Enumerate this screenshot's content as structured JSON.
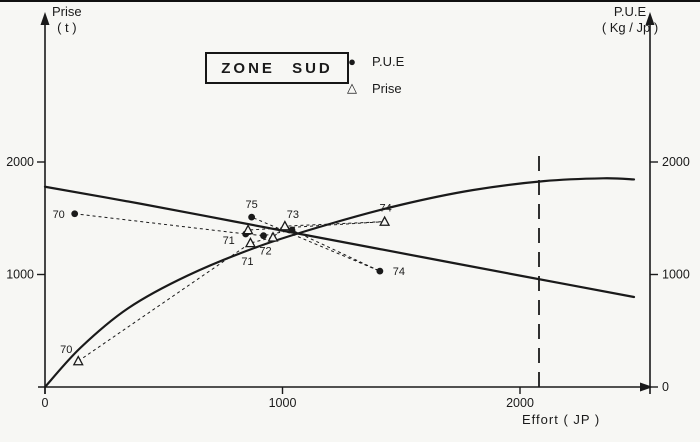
{
  "title_box": "ZONE SUD",
  "legend": {
    "items": [
      {
        "symbol": "●",
        "label": "P.U.E"
      },
      {
        "symbol": "△",
        "label": "Prise"
      }
    ]
  },
  "axis_labels": {
    "left_1": "Prise",
    "left_2": "( t )",
    "right_1": "P.U.E",
    "right_2": "( Kg / Jp )",
    "x": "Effort ( JP )"
  },
  "chart_data": {
    "type": "scatter",
    "title": "ZONE SUD",
    "xlabel": "Effort (JP)",
    "ylabel_left": "Prise (t)",
    "ylabel_right": "P.U.E (Kg/JP)",
    "xlim": [
      0,
      2530
    ],
    "ylim": [
      0,
      2400
    ],
    "x_ticks": [
      0,
      1000,
      2000
    ],
    "y_ticks_left": [
      1000,
      2000
    ],
    "y_ticks_right": [
      0,
      1000,
      2000
    ],
    "series": [
      {
        "name": "P.U.E",
        "marker": "filled-circle",
        "axis": "right",
        "points": [
          {
            "year": "70",
            "x": 125,
            "y": 1540,
            "label_offset": [
              -16,
              4
            ]
          },
          {
            "year": "71",
            "x": 845,
            "y": 1360,
            "label_offset": [
              -17,
              10
            ]
          },
          {
            "year": "72",
            "x": 920,
            "y": 1345,
            "label_offset": [
              2,
              19
            ]
          },
          {
            "year": "73",
            "x": 1040,
            "y": 1395,
            "label_offset": null
          },
          {
            "year": "74",
            "x": 1410,
            "y": 1030,
            "label_offset": [
              19,
              4
            ]
          },
          {
            "year": "75",
            "x": 870,
            "y": 1510,
            "label_offset": [
              0,
              -9
            ]
          }
        ]
      },
      {
        "name": "Prise",
        "marker": "open-triangle",
        "axis": "left",
        "points": [
          {
            "year": "70",
            "x": 140,
            "y": 230,
            "label_offset": [
              -12,
              -8
            ]
          },
          {
            "year": "71",
            "x": 865,
            "y": 1280,
            "label_offset": [
              -3,
              22
            ]
          },
          {
            "year": "72",
            "x": 960,
            "y": 1330,
            "label_offset": null
          },
          {
            "year": "73",
            "x": 1010,
            "y": 1430,
            "label_offset": [
              8,
              -8
            ]
          },
          {
            "year": "74",
            "x": 1430,
            "y": 1470,
            "label_offset": [
              1,
              -10
            ]
          },
          {
            "year": "75",
            "x": 855,
            "y": 1395,
            "label_offset": null
          }
        ]
      }
    ],
    "curves": [
      {
        "name": "pue-trend",
        "points": [
          [
            0,
            1780
          ],
          [
            400,
            1630
          ],
          [
            800,
            1470
          ],
          [
            1200,
            1310
          ],
          [
            1600,
            1150
          ],
          [
            2000,
            990
          ],
          [
            2480,
            800
          ]
        ]
      },
      {
        "name": "prise-yield",
        "points": [
          [
            0,
            0
          ],
          [
            150,
            350
          ],
          [
            350,
            700
          ],
          [
            600,
            990
          ],
          [
            900,
            1250
          ],
          [
            1200,
            1450
          ],
          [
            1500,
            1620
          ],
          [
            1800,
            1750
          ],
          [
            2100,
            1830
          ],
          [
            2350,
            1855
          ],
          [
            2480,
            1845
          ]
        ]
      }
    ],
    "vline_x": 2080
  }
}
